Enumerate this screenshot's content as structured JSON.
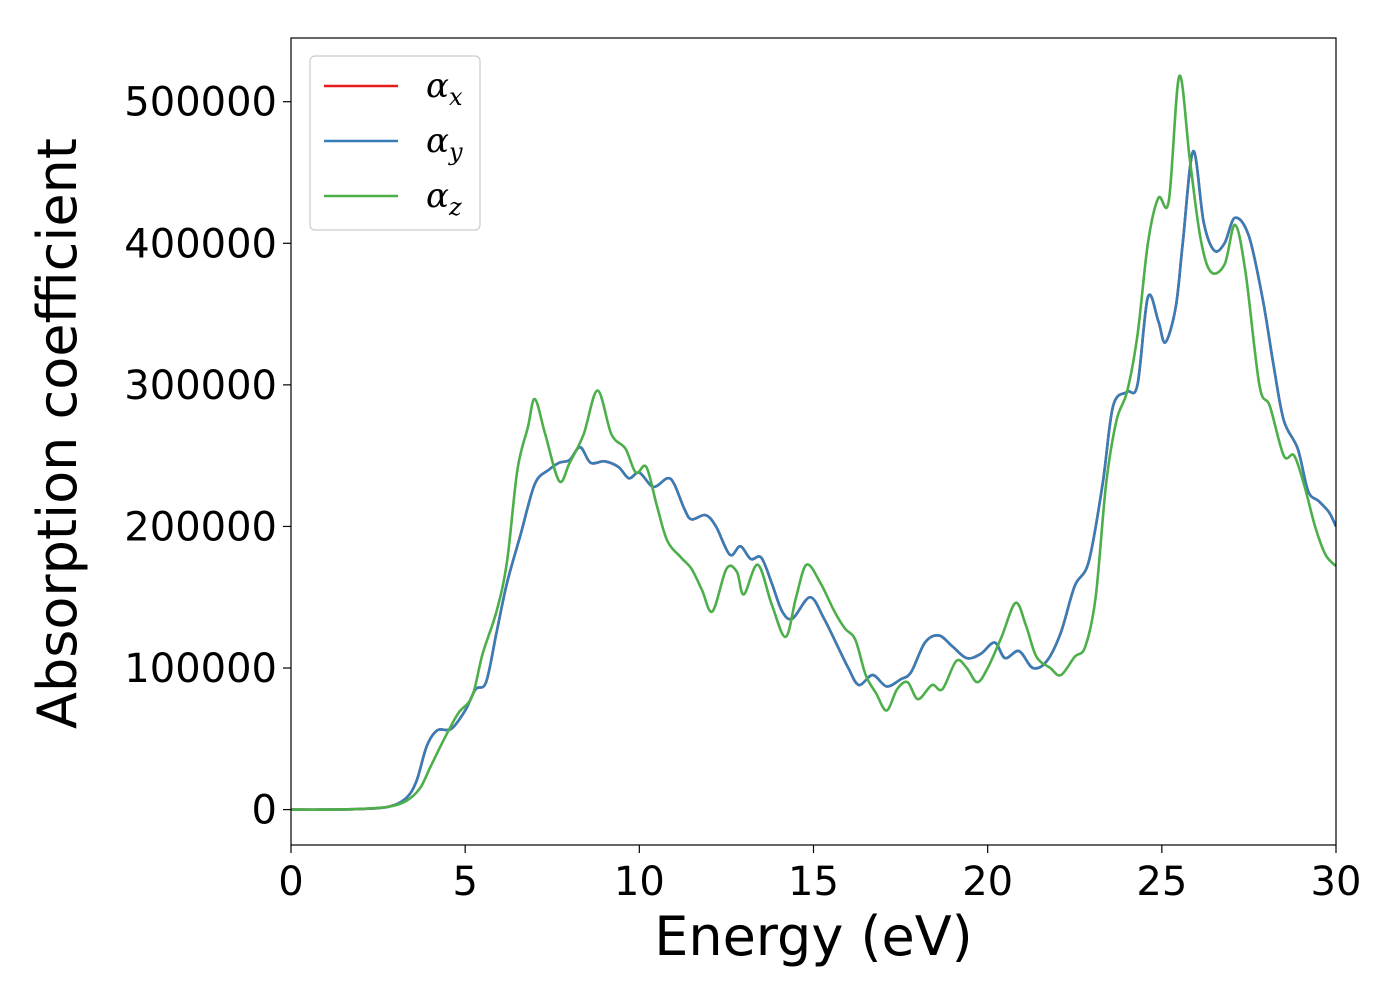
{
  "chart_data": {
    "type": "line",
    "xlabel": "Energy (eV)",
    "ylabel": "Absorption coefficient",
    "xlim": [
      0,
      30
    ],
    "ylim": [
      -25000,
      545000
    ],
    "xticks": [
      "0",
      "5",
      "10",
      "15",
      "20",
      "25",
      "30"
    ],
    "yticks": [
      "0",
      "100000",
      "200000",
      "300000",
      "400000",
      "500000"
    ],
    "grid": false,
    "legend_position": "top-left",
    "series": [
      {
        "name": "α",
        "subscript": "x",
        "color": "#e41a1c",
        "points": [
          [
            0,
            0
          ],
          [
            1,
            0
          ],
          [
            2,
            500
          ],
          [
            2.8,
            2000
          ],
          [
            3.3,
            8000
          ],
          [
            3.6,
            20000
          ],
          [
            3.9,
            45000
          ],
          [
            4.2,
            56000
          ],
          [
            4.6,
            57000
          ],
          [
            5.0,
            70000
          ],
          [
            5.3,
            85000
          ],
          [
            5.6,
            90000
          ],
          [
            5.9,
            125000
          ],
          [
            6.2,
            160000
          ],
          [
            6.6,
            195000
          ],
          [
            7.0,
            230000
          ],
          [
            7.4,
            240000
          ],
          [
            7.7,
            245000
          ],
          [
            8.0,
            247000
          ],
          [
            8.3,
            256000
          ],
          [
            8.6,
            245000
          ],
          [
            9.0,
            246000
          ],
          [
            9.4,
            242000
          ],
          [
            9.7,
            234000
          ],
          [
            10.0,
            238000
          ],
          [
            10.4,
            228000
          ],
          [
            10.8,
            234000
          ],
          [
            11.0,
            230000
          ],
          [
            11.3,
            212000
          ],
          [
            11.5,
            205000
          ],
          [
            11.9,
            208000
          ],
          [
            12.2,
            200000
          ],
          [
            12.6,
            180000
          ],
          [
            12.9,
            186000
          ],
          [
            13.2,
            177000
          ],
          [
            13.5,
            178000
          ],
          [
            13.8,
            160000
          ],
          [
            14.1,
            140000
          ],
          [
            14.4,
            135000
          ],
          [
            14.9,
            150000
          ],
          [
            15.3,
            135000
          ],
          [
            15.7,
            115000
          ],
          [
            16.0,
            100000
          ],
          [
            16.3,
            88000
          ],
          [
            16.7,
            95000
          ],
          [
            17.1,
            87000
          ],
          [
            17.5,
            92000
          ],
          [
            17.8,
            97000
          ],
          [
            18.2,
            118000
          ],
          [
            18.6,
            123000
          ],
          [
            19.0,
            115000
          ],
          [
            19.4,
            107000
          ],
          [
            19.8,
            110000
          ],
          [
            20.2,
            118000
          ],
          [
            20.5,
            107000
          ],
          [
            20.9,
            112000
          ],
          [
            21.3,
            100000
          ],
          [
            21.7,
            105000
          ],
          [
            22.1,
            125000
          ],
          [
            22.5,
            158000
          ],
          [
            22.9,
            175000
          ],
          [
            23.3,
            230000
          ],
          [
            23.6,
            285000
          ],
          [
            24.0,
            295000
          ],
          [
            24.3,
            300000
          ],
          [
            24.6,
            362000
          ],
          [
            24.9,
            345000
          ],
          [
            25.1,
            330000
          ],
          [
            25.4,
            355000
          ],
          [
            25.6,
            400000
          ],
          [
            25.9,
            465000
          ],
          [
            26.2,
            415000
          ],
          [
            26.5,
            395000
          ],
          [
            26.8,
            400000
          ],
          [
            27.1,
            418000
          ],
          [
            27.5,
            405000
          ],
          [
            27.9,
            360000
          ],
          [
            28.2,
            315000
          ],
          [
            28.5,
            275000
          ],
          [
            28.9,
            255000
          ],
          [
            29.2,
            225000
          ],
          [
            29.5,
            218000
          ],
          [
            29.8,
            210000
          ],
          [
            30,
            200000
          ]
        ]
      },
      {
        "name": "α",
        "subscript": "y",
        "color": "#377eb8",
        "points": [
          [
            0,
            0
          ],
          [
            1,
            0
          ],
          [
            2,
            500
          ],
          [
            2.8,
            2000
          ],
          [
            3.3,
            8000
          ],
          [
            3.6,
            20000
          ],
          [
            3.9,
            45000
          ],
          [
            4.2,
            56000
          ],
          [
            4.6,
            57000
          ],
          [
            5.0,
            70000
          ],
          [
            5.3,
            85000
          ],
          [
            5.6,
            90000
          ],
          [
            5.9,
            125000
          ],
          [
            6.2,
            160000
          ],
          [
            6.6,
            195000
          ],
          [
            7.0,
            230000
          ],
          [
            7.4,
            240000
          ],
          [
            7.7,
            245000
          ],
          [
            8.0,
            247000
          ],
          [
            8.3,
            256000
          ],
          [
            8.6,
            245000
          ],
          [
            9.0,
            246000
          ],
          [
            9.4,
            242000
          ],
          [
            9.7,
            234000
          ],
          [
            10.0,
            238000
          ],
          [
            10.4,
            228000
          ],
          [
            10.8,
            234000
          ],
          [
            11.0,
            230000
          ],
          [
            11.3,
            212000
          ],
          [
            11.5,
            205000
          ],
          [
            11.9,
            208000
          ],
          [
            12.2,
            200000
          ],
          [
            12.6,
            180000
          ],
          [
            12.9,
            186000
          ],
          [
            13.2,
            177000
          ],
          [
            13.5,
            178000
          ],
          [
            13.8,
            160000
          ],
          [
            14.1,
            140000
          ],
          [
            14.4,
            135000
          ],
          [
            14.9,
            150000
          ],
          [
            15.3,
            135000
          ],
          [
            15.7,
            115000
          ],
          [
            16.0,
            100000
          ],
          [
            16.3,
            88000
          ],
          [
            16.7,
            95000
          ],
          [
            17.1,
            87000
          ],
          [
            17.5,
            92000
          ],
          [
            17.8,
            97000
          ],
          [
            18.2,
            118000
          ],
          [
            18.6,
            123000
          ],
          [
            19.0,
            115000
          ],
          [
            19.4,
            107000
          ],
          [
            19.8,
            110000
          ],
          [
            20.2,
            118000
          ],
          [
            20.5,
            107000
          ],
          [
            20.9,
            112000
          ],
          [
            21.3,
            100000
          ],
          [
            21.7,
            105000
          ],
          [
            22.1,
            125000
          ],
          [
            22.5,
            158000
          ],
          [
            22.9,
            175000
          ],
          [
            23.3,
            230000
          ],
          [
            23.6,
            285000
          ],
          [
            24.0,
            295000
          ],
          [
            24.3,
            300000
          ],
          [
            24.6,
            362000
          ],
          [
            24.9,
            345000
          ],
          [
            25.1,
            330000
          ],
          [
            25.4,
            355000
          ],
          [
            25.6,
            400000
          ],
          [
            25.9,
            465000
          ],
          [
            26.2,
            415000
          ],
          [
            26.5,
            395000
          ],
          [
            26.8,
            400000
          ],
          [
            27.1,
            418000
          ],
          [
            27.5,
            405000
          ],
          [
            27.9,
            360000
          ],
          [
            28.2,
            315000
          ],
          [
            28.5,
            275000
          ],
          [
            28.9,
            255000
          ],
          [
            29.2,
            225000
          ],
          [
            29.5,
            218000
          ],
          [
            29.8,
            210000
          ],
          [
            30,
            200000
          ]
        ]
      },
      {
        "name": "α",
        "subscript": "z",
        "color": "#4daf4a",
        "points": [
          [
            0,
            0
          ],
          [
            1,
            0
          ],
          [
            2,
            500
          ],
          [
            2.8,
            2000
          ],
          [
            3.3,
            6000
          ],
          [
            3.7,
            15000
          ],
          [
            4.0,
            30000
          ],
          [
            4.4,
            50000
          ],
          [
            4.8,
            68000
          ],
          [
            5.2,
            80000
          ],
          [
            5.5,
            110000
          ],
          [
            5.9,
            140000
          ],
          [
            6.2,
            175000
          ],
          [
            6.5,
            240000
          ],
          [
            6.8,
            270000
          ],
          [
            7.0,
            290000
          ],
          [
            7.3,
            265000
          ],
          [
            7.7,
            232000
          ],
          [
            8.0,
            245000
          ],
          [
            8.4,
            265000
          ],
          [
            8.8,
            296000
          ],
          [
            9.2,
            265000
          ],
          [
            9.6,
            255000
          ],
          [
            9.9,
            238000
          ],
          [
            10.2,
            242000
          ],
          [
            10.5,
            215000
          ],
          [
            10.8,
            190000
          ],
          [
            11.2,
            178000
          ],
          [
            11.5,
            170000
          ],
          [
            11.8,
            155000
          ],
          [
            12.1,
            140000
          ],
          [
            12.5,
            170000
          ],
          [
            12.8,
            168000
          ],
          [
            13.0,
            152000
          ],
          [
            13.4,
            173000
          ],
          [
            13.8,
            145000
          ],
          [
            14.2,
            122000
          ],
          [
            14.5,
            150000
          ],
          [
            14.8,
            173000
          ],
          [
            15.2,
            160000
          ],
          [
            15.6,
            140000
          ],
          [
            15.9,
            128000
          ],
          [
            16.2,
            120000
          ],
          [
            16.5,
            95000
          ],
          [
            16.8,
            82000
          ],
          [
            17.1,
            70000
          ],
          [
            17.4,
            85000
          ],
          [
            17.7,
            90000
          ],
          [
            18.0,
            78000
          ],
          [
            18.4,
            88000
          ],
          [
            18.7,
            85000
          ],
          [
            19.1,
            105000
          ],
          [
            19.4,
            100000
          ],
          [
            19.7,
            90000
          ],
          [
            20.0,
            100000
          ],
          [
            20.4,
            122000
          ],
          [
            20.8,
            146000
          ],
          [
            21.1,
            130000
          ],
          [
            21.4,
            108000
          ],
          [
            21.8,
            100000
          ],
          [
            22.1,
            95000
          ],
          [
            22.5,
            108000
          ],
          [
            22.8,
            115000
          ],
          [
            23.1,
            150000
          ],
          [
            23.4,
            230000
          ],
          [
            23.7,
            275000
          ],
          [
            24.0,
            295000
          ],
          [
            24.3,
            335000
          ],
          [
            24.6,
            400000
          ],
          [
            24.9,
            432000
          ],
          [
            25.2,
            430000
          ],
          [
            25.5,
            518000
          ],
          [
            25.8,
            460000
          ],
          [
            26.1,
            405000
          ],
          [
            26.4,
            380000
          ],
          [
            26.8,
            385000
          ],
          [
            27.1,
            413000
          ],
          [
            27.4,
            380000
          ],
          [
            27.8,
            300000
          ],
          [
            28.1,
            285000
          ],
          [
            28.5,
            250000
          ],
          [
            28.8,
            250000
          ],
          [
            29.1,
            228000
          ],
          [
            29.4,
            200000
          ],
          [
            29.7,
            180000
          ],
          [
            30,
            172000
          ]
        ]
      }
    ]
  }
}
